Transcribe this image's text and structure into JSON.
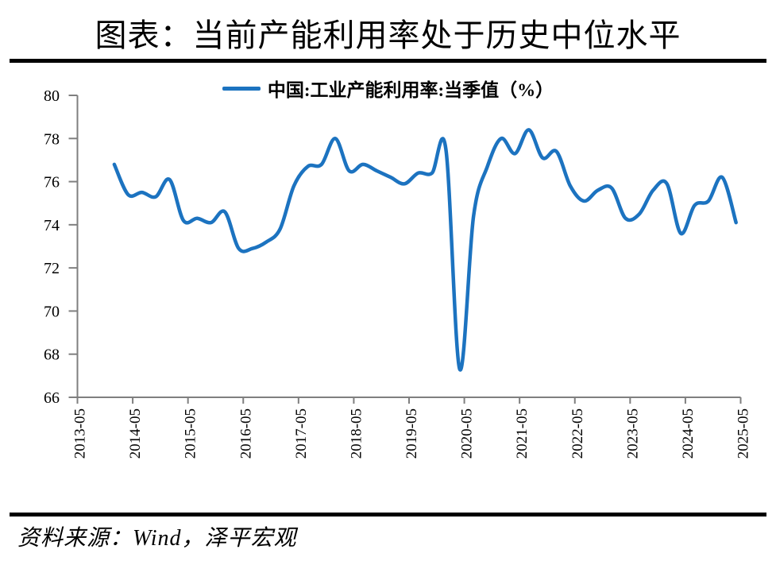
{
  "header": {
    "title": "图表：当前产能利用率处于历史中位水平"
  },
  "footer": {
    "source": "资料来源：Wind，泽平宏观"
  },
  "chart_data": {
    "type": "line",
    "title": "图表：当前产能利用率处于历史中位水平",
    "legend": "中国:工业产能利用率:当季值（%）",
    "xlabel": "",
    "ylabel": "",
    "ylim": [
      66,
      80
    ],
    "yticks": [
      80,
      78,
      76,
      74,
      72,
      70,
      68,
      66
    ],
    "xticks": [
      "2013-05",
      "2014-05",
      "2015-05",
      "2016-05",
      "2017-05",
      "2018-05",
      "2019-05",
      "2020-05",
      "2021-05",
      "2022-05",
      "2023-05",
      "2024-05",
      "2025-05"
    ],
    "grid": false,
    "legend_position": "top-center",
    "colors": {
      "line": "#1C73C0",
      "axis": "#7F7F7F",
      "text": "#000000",
      "divider": "#000000"
    },
    "series": [
      {
        "name": "中国:工业产能利用率:当季值（%）",
        "unit": "%",
        "points": [
          [
            "2013-12",
            76.8
          ],
          [
            "2014-03",
            75.4
          ],
          [
            "2014-06",
            75.5
          ],
          [
            "2014-09",
            75.3
          ],
          [
            "2014-12",
            76.1
          ],
          [
            "2015-03",
            74.2
          ],
          [
            "2015-06",
            74.3
          ],
          [
            "2015-09",
            74.1
          ],
          [
            "2015-12",
            74.6
          ],
          [
            "2016-03",
            72.9
          ],
          [
            "2016-06",
            72.9
          ],
          [
            "2016-09",
            73.2
          ],
          [
            "2016-12",
            73.8
          ],
          [
            "2017-03",
            75.8
          ],
          [
            "2017-06",
            76.7
          ],
          [
            "2017-09",
            76.8
          ],
          [
            "2017-12",
            78.0
          ],
          [
            "2018-03",
            76.5
          ],
          [
            "2018-06",
            76.8
          ],
          [
            "2018-09",
            76.5
          ],
          [
            "2018-12",
            76.2
          ],
          [
            "2019-03",
            75.9
          ],
          [
            "2019-06",
            76.4
          ],
          [
            "2019-09",
            76.4
          ],
          [
            "2019-12",
            77.5
          ],
          [
            "2020-03",
            67.3
          ],
          [
            "2020-06",
            74.4
          ],
          [
            "2020-09",
            76.7
          ],
          [
            "2020-12",
            78.0
          ],
          [
            "2021-03",
            77.3
          ],
          [
            "2021-06",
            78.4
          ],
          [
            "2021-09",
            77.1
          ],
          [
            "2021-12",
            77.4
          ],
          [
            "2022-03",
            75.8
          ],
          [
            "2022-06",
            75.1
          ],
          [
            "2022-09",
            75.6
          ],
          [
            "2022-12",
            75.7
          ],
          [
            "2023-03",
            74.3
          ],
          [
            "2023-06",
            74.5
          ],
          [
            "2023-09",
            75.6
          ],
          [
            "2023-12",
            75.9
          ],
          [
            "2024-03",
            73.6
          ],
          [
            "2024-06",
            74.9
          ],
          [
            "2024-09",
            75.1
          ],
          [
            "2024-12",
            76.2
          ],
          [
            "2025-03",
            74.1
          ]
        ]
      }
    ]
  }
}
